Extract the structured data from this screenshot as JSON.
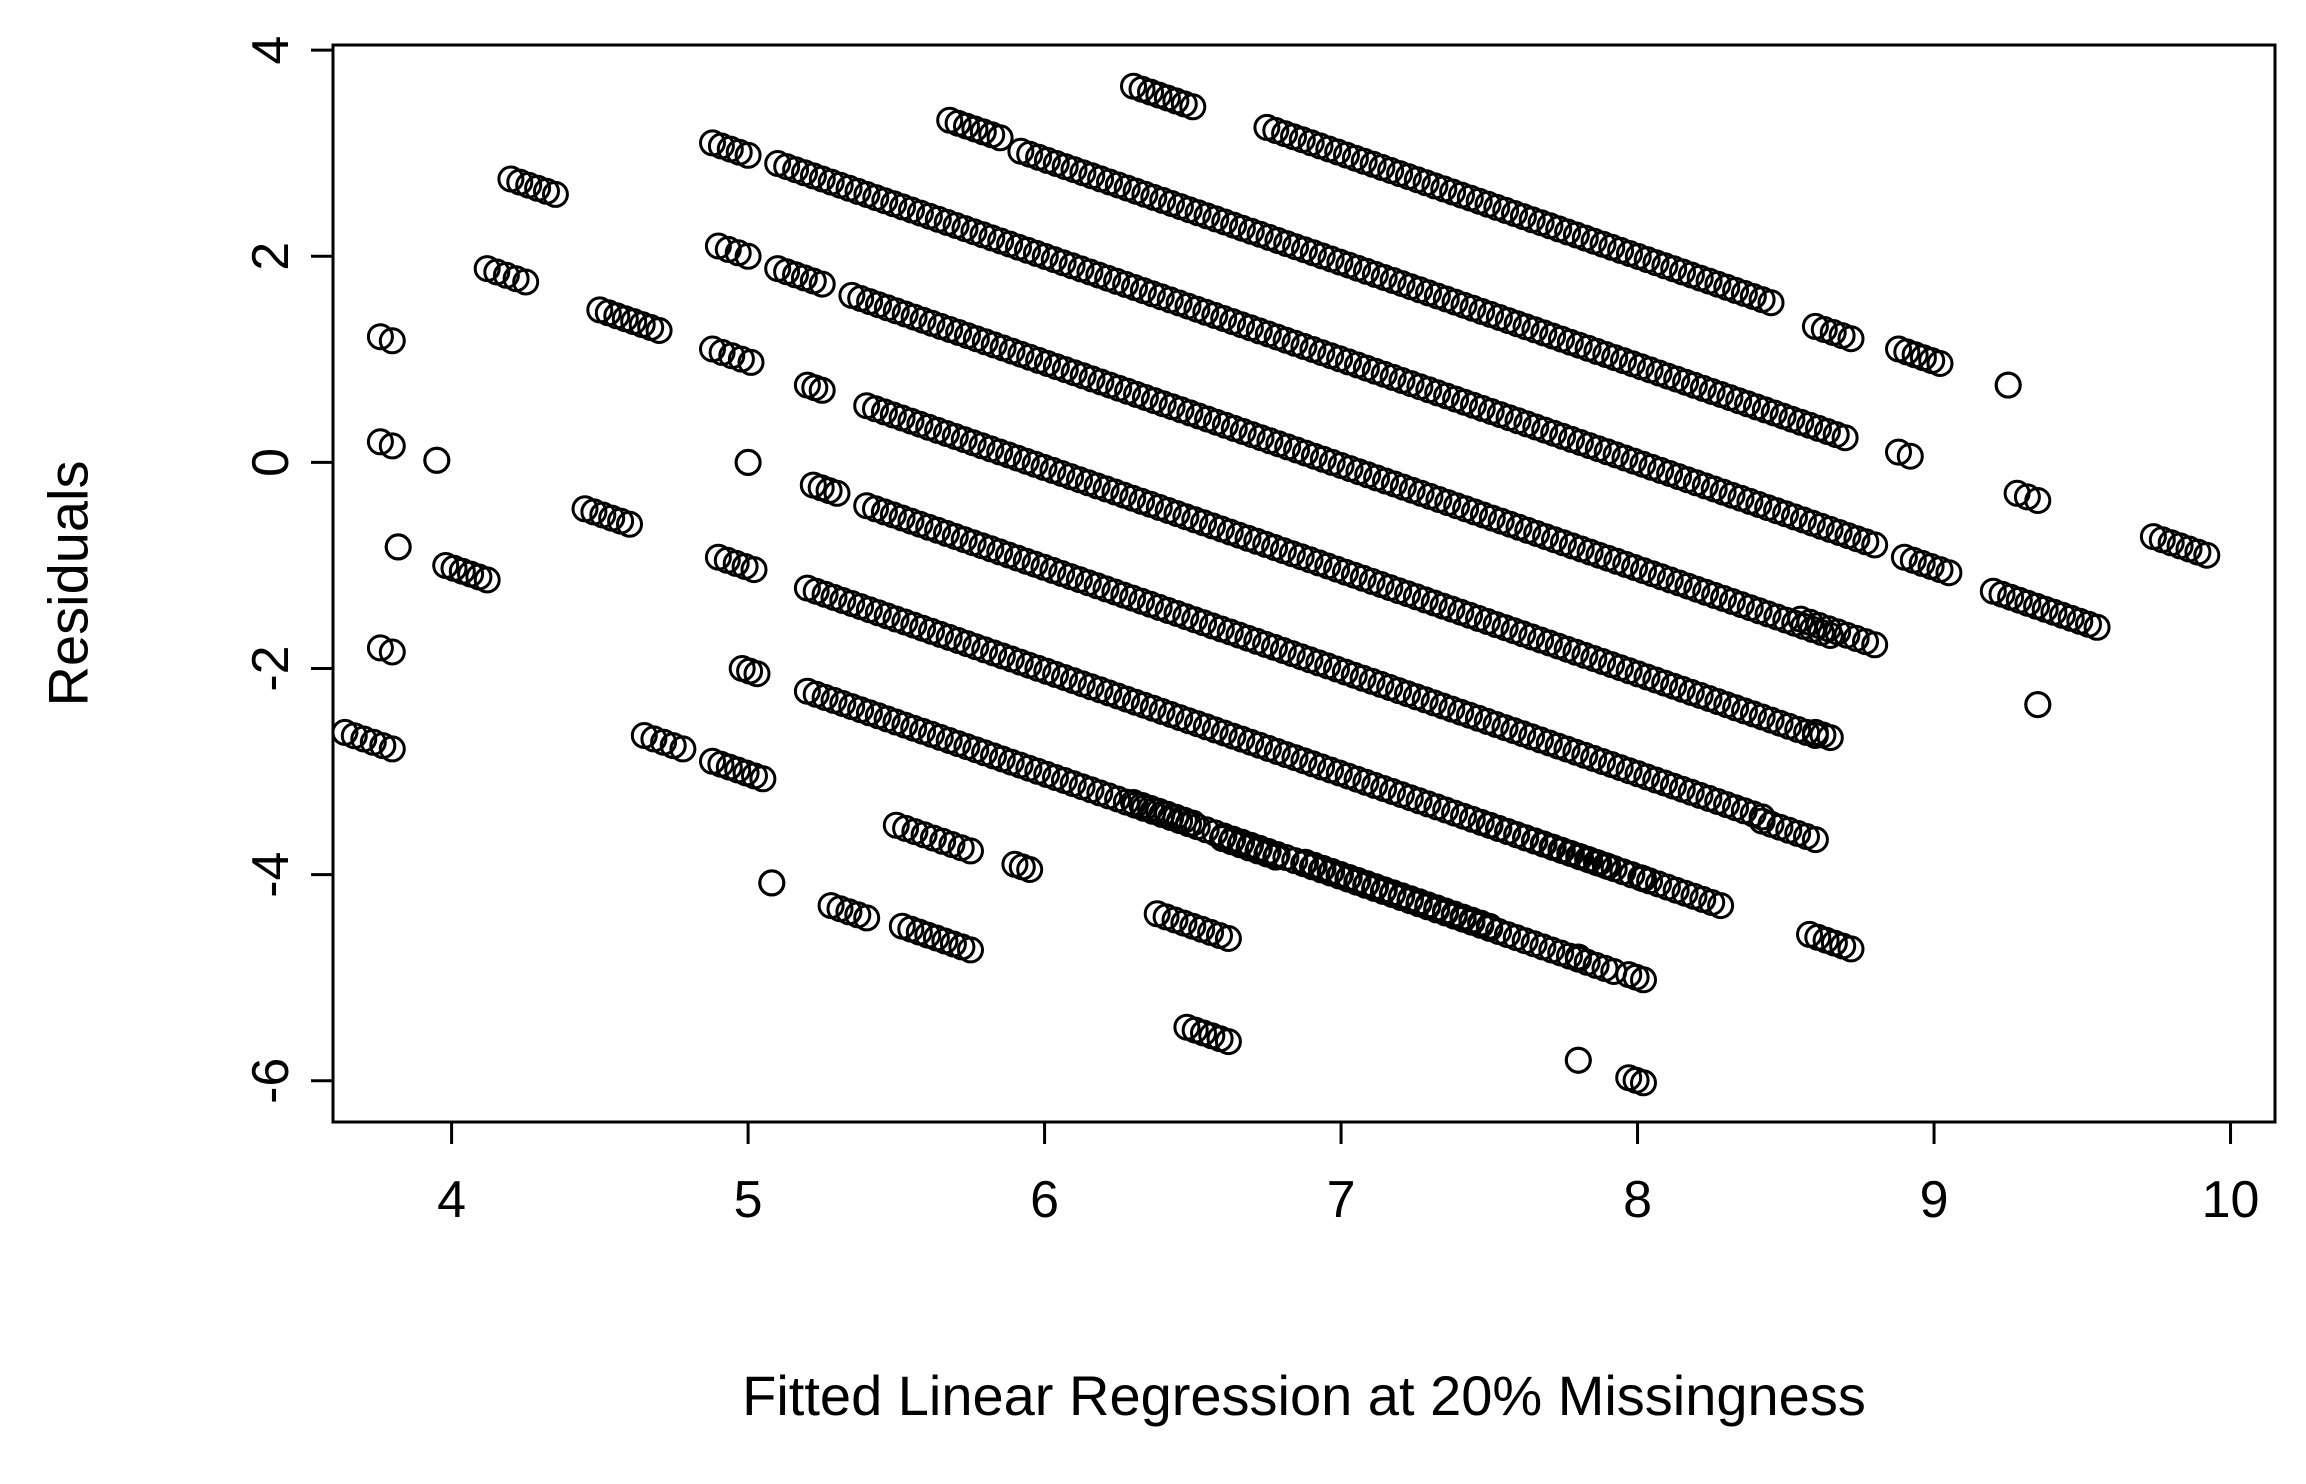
{
  "chart_data": {
    "type": "scatter",
    "title": "",
    "xlabel": "Fitted Linear Regression at 20% Missingness",
    "ylabel": "Residuals",
    "xlim": [
      3.6,
      10.15
    ],
    "ylim": [
      -6.4,
      4.05
    ],
    "xticks": [
      4,
      5,
      6,
      7,
      8,
      9,
      10
    ],
    "yticks": [
      -6,
      -4,
      -2,
      0,
      2,
      4
    ],
    "grid": false,
    "legend": "none",
    "marker": "open-circle",
    "marker_color": "#000000",
    "bands": [
      {
        "x": [
          6.3,
          6.5
        ],
        "y0": 3.65,
        "slope": -1
      },
      {
        "x": [
          5.68,
          5.85
        ],
        "y0": 3.32,
        "slope": -1
      },
      {
        "x": [
          6.75,
          8.45
        ],
        "y0": 3.25,
        "slope": -1
      },
      {
        "x": [
          4.88,
          5.0
        ],
        "y0": 3.1,
        "slope": -1
      },
      {
        "x": [
          5.92,
          8.7
        ],
        "y0": 3.02,
        "slope": -1
      },
      {
        "x": [
          8.6,
          8.72
        ],
        "y0": 1.32,
        "slope": -1
      },
      {
        "x": [
          8.88,
          9.02
        ],
        "y0": 1.1,
        "slope": -1
      },
      {
        "x": [
          4.2,
          4.35
        ],
        "y0": 2.75,
        "slope": -1
      },
      {
        "x": [
          5.1,
          8.8
        ],
        "y0": 2.9,
        "slope": -1
      },
      {
        "x": [
          8.88,
          8.92
        ],
        "y0": 0.1,
        "slope": -1
      },
      {
        "x": [
          9.25,
          9.25
        ],
        "y0": 0.75,
        "slope": -1
      },
      {
        "x": [
          4.9,
          5.0
        ],
        "y0": 2.1,
        "slope": -1
      },
      {
        "x": [
          5.1,
          5.25
        ],
        "y0": 1.88,
        "slope": -1
      },
      {
        "x": [
          5.35,
          8.65
        ],
        "y0": 1.62,
        "slope": -1
      },
      {
        "x": [
          8.9,
          9.05
        ],
        "y0": -0.92,
        "slope": -1
      },
      {
        "x": [
          9.28,
          9.35
        ],
        "y0": -0.3,
        "slope": -1
      },
      {
        "x": [
          4.12,
          4.25
        ],
        "y0": 1.88,
        "slope": -1
      },
      {
        "x": [
          4.5,
          4.7
        ],
        "y0": 1.48,
        "slope": -1
      },
      {
        "x": [
          4.88,
          5.01
        ],
        "y0": 1.1,
        "slope": -1
      },
      {
        "x": [
          5.2,
          5.25
        ],
        "y0": 0.75,
        "slope": -1
      },
      {
        "x": [
          5.4,
          8.6
        ],
        "y0": 0.55,
        "slope": -1
      },
      {
        "x": [
          9.2,
          9.55
        ],
        "y0": -1.25,
        "slope": -1
      },
      {
        "x": [
          9.74,
          9.92
        ],
        "y0": -0.72,
        "slope": -1
      },
      {
        "x": [
          3.76,
          3.8
        ],
        "y0": 1.22,
        "slope": -1
      },
      {
        "x": [
          3.76,
          3.8
        ],
        "y0": 0.2,
        "slope": -1
      },
      {
        "x": [
          3.95,
          3.95
        ],
        "y0": 0.02,
        "slope": -1
      },
      {
        "x": [
          5.0,
          5.0
        ],
        "y0": 0.0,
        "slope": -1
      },
      {
        "x": [
          5.22,
          5.3
        ],
        "y0": -0.22,
        "slope": -1
      },
      {
        "x": [
          5.4,
          8.42
        ],
        "y0": -0.42,
        "slope": -1
      },
      {
        "x": [
          8.6,
          8.65
        ],
        "y0": -2.62,
        "slope": -1
      },
      {
        "x": [
          9.35,
          9.35
        ],
        "y0": -2.35,
        "slope": -1
      },
      {
        "x": [
          3.82,
          3.82
        ],
        "y0": -0.82,
        "slope": -1
      },
      {
        "x": [
          3.98,
          4.12
        ],
        "y0": -1.0,
        "slope": -1
      },
      {
        "x": [
          4.45,
          4.6
        ],
        "y0": -0.45,
        "slope": -1
      },
      {
        "x": [
          4.9,
          5.02
        ],
        "y0": -0.92,
        "slope": -1
      },
      {
        "x": [
          5.2,
          8.28
        ],
        "y0": -1.22,
        "slope": -1
      },
      {
        "x": [
          8.55,
          8.8
        ],
        "y0": -1.52,
        "slope": -1
      },
      {
        "x": [
          3.76,
          3.8
        ],
        "y0": -1.8,
        "slope": -1
      },
      {
        "x": [
          4.98,
          5.03
        ],
        "y0": -2.0,
        "slope": -1
      },
      {
        "x": [
          5.2,
          7.92
        ],
        "y0": -2.22,
        "slope": -1
      },
      {
        "x": [
          8.42,
          8.6
        ],
        "y0": -3.48,
        "slope": -1
      },
      {
        "x": [
          3.64,
          3.8
        ],
        "y0": -2.62,
        "slope": -1
      },
      {
        "x": [
          4.65,
          4.78
        ],
        "y0": -2.65,
        "slope": -1
      },
      {
        "x": [
          4.88,
          5.05
        ],
        "y0": -2.9,
        "slope": -1
      },
      {
        "x": [
          5.5,
          5.75
        ],
        "y0": -3.52,
        "slope": -1
      },
      {
        "x": [
          5.9,
          5.95
        ],
        "y0": -3.9,
        "slope": -1
      },
      {
        "x": [
          6.3,
          6.5
        ],
        "y0": -3.3,
        "slope": -1
      },
      {
        "x": [
          6.6,
          6.78
        ],
        "y0": -3.65,
        "slope": -1
      },
      {
        "x": [
          6.88,
          7.5
        ],
        "y0": -3.88,
        "slope": -1
      },
      {
        "x": [
          7.5,
          7.9
        ],
        "y0": -3.52,
        "slope": -1
      },
      {
        "x": [
          7.98,
          8.02
        ],
        "y0": -4.0,
        "slope": -1
      },
      {
        "x": [
          8.58,
          8.72
        ],
        "y0": -4.58,
        "slope": -1
      },
      {
        "x": [
          5.08,
          5.08
        ],
        "y0": -4.08,
        "slope": -1
      },
      {
        "x": [
          5.28,
          5.4
        ],
        "y0": -4.3,
        "slope": -1
      },
      {
        "x": [
          5.52,
          5.75
        ],
        "y0": -4.5,
        "slope": -1
      },
      {
        "x": [
          6.38,
          6.62
        ],
        "y0": -4.38,
        "slope": -1
      },
      {
        "x": [
          7.8,
          7.8
        ],
        "y0": -4.8,
        "slope": -1
      },
      {
        "x": [
          7.97,
          8.02
        ],
        "y0": -4.97,
        "slope": -1
      },
      {
        "x": [
          6.48,
          6.62
        ],
        "y0": -5.48,
        "slope": -1
      },
      {
        "x": [
          7.8,
          7.8
        ],
        "y0": -5.8,
        "slope": -1
      },
      {
        "x": [
          7.97,
          8.02
        ],
        "y0": -5.97,
        "slope": -1
      }
    ]
  }
}
